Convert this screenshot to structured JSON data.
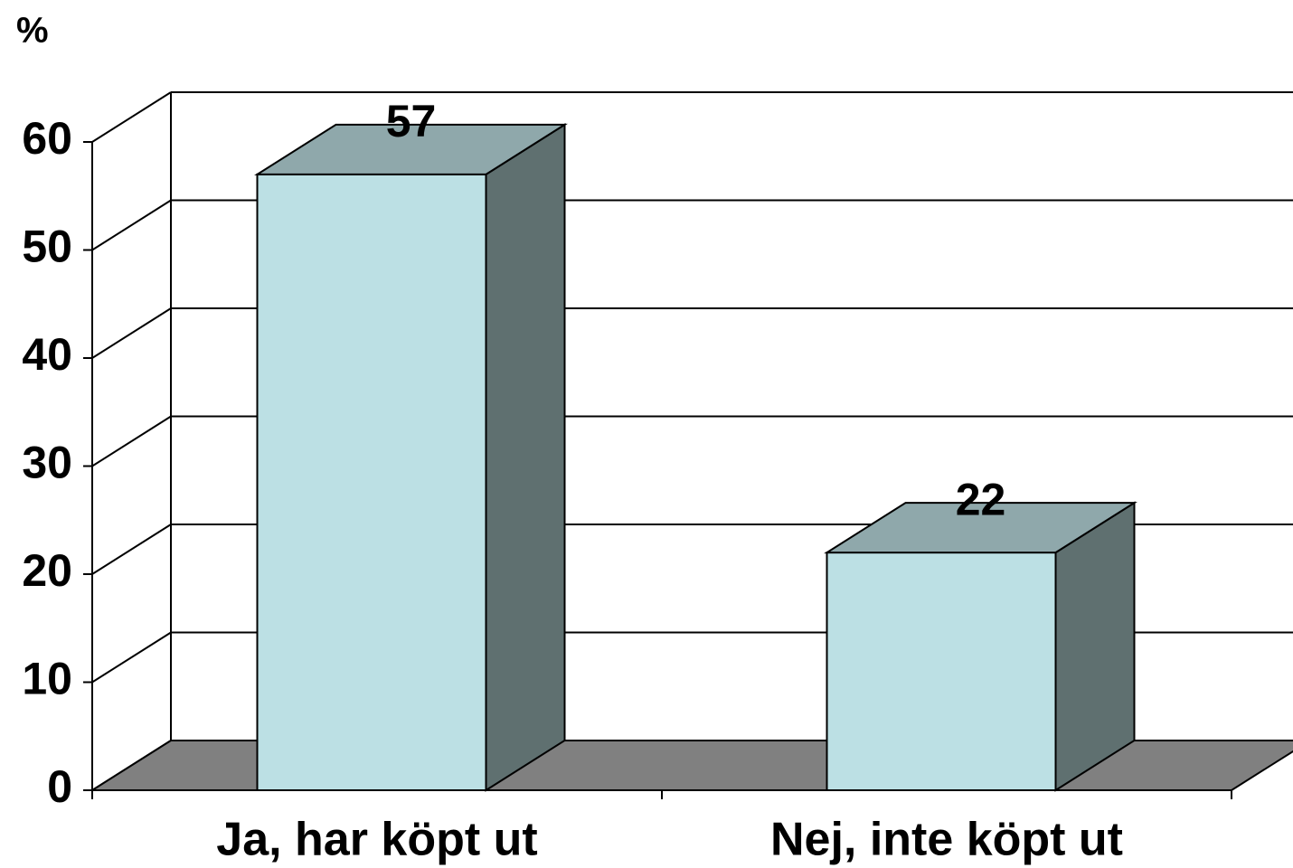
{
  "chart_data": {
    "type": "bar3d",
    "y_axis_label": "%",
    "categories": [
      "Ja, har köpt ut",
      "Nej, inte köpt ut"
    ],
    "values": [
      57,
      22
    ],
    "color": "#bce0e4",
    "side_color": "#5f7070",
    "top_color": "#8fa8ab",
    "floor_color": "#808080",
    "ylim": [
      0,
      60
    ],
    "yticks": [
      0,
      10,
      20,
      30,
      40,
      50,
      60
    ],
    "grid": true
  }
}
